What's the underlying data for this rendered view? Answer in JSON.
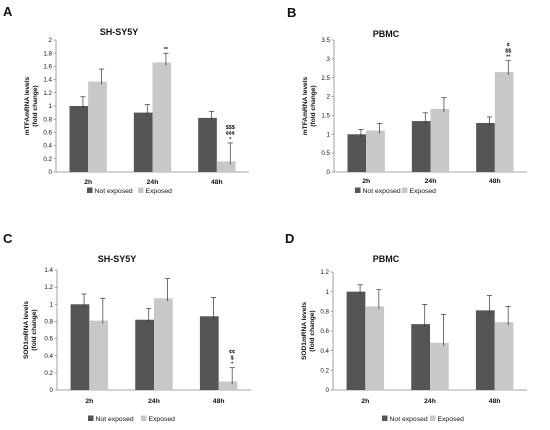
{
  "colors": {
    "not_exposed": "#555555",
    "exposed": "#c8c8c8",
    "axis": "#8a8a8a",
    "error_bar": "#333333"
  },
  "chart_data": [
    {
      "panel": "A",
      "type": "bar",
      "title": "SH-SY5Y",
      "ylabel": "mTFAmRNA levels (fold change)",
      "ylabel_lines": [
        "mTFAmRNA levels",
        "(fold change)"
      ],
      "ylim": [
        0,
        2
      ],
      "yticks": [
        "0",
        "0.2",
        "0.4",
        "0.6",
        "0.8",
        "1",
        "1.2",
        "1.4",
        "1.6",
        "1.8",
        "2"
      ],
      "categories": [
        "2h",
        "24h",
        "48h"
      ],
      "series": [
        {
          "name": "Not exposed",
          "values": [
            1.0,
            0.9,
            0.82
          ],
          "errors": [
            0.14,
            0.12,
            0.1
          ]
        },
        {
          "name": "Exposed",
          "values": [
            1.37,
            1.66,
            0.16
          ],
          "errors": [
            0.19,
            0.14,
            0.28
          ]
        }
      ],
      "annotations": [
        {
          "category": "24h",
          "series": "Exposed",
          "lines": [
            "**"
          ]
        },
        {
          "category": "48h",
          "series": "Exposed",
          "lines": [
            "$$$",
            "¢¢¢",
            "*"
          ]
        }
      ],
      "legend": "bottom"
    },
    {
      "panel": "B",
      "type": "bar",
      "title": "PBMC",
      "ylabel": "mTFAmRNA levels (fold change)",
      "ylabel_lines": [
        "mTFAmRNA levels",
        "(fold change)"
      ],
      "ylim": [
        0,
        3.5
      ],
      "yticks": [
        "0",
        "0.5",
        "1",
        "1.5",
        "2",
        "2.5",
        "3",
        "3.5"
      ],
      "categories": [
        "2h",
        "24h",
        "48h"
      ],
      "series": [
        {
          "name": "Not exposed",
          "values": [
            1.0,
            1.35,
            1.3
          ],
          "errors": [
            0.13,
            0.22,
            0.16
          ]
        },
        {
          "name": "Exposed",
          "values": [
            1.1,
            1.67,
            2.65
          ],
          "errors": [
            0.19,
            0.3,
            0.3
          ]
        }
      ],
      "annotations": [
        {
          "category": "48h",
          "series": "Exposed",
          "lines": [
            "¢",
            "$$",
            "**"
          ]
        }
      ],
      "legend": "bottom"
    },
    {
      "panel": "C",
      "type": "bar",
      "title": "SH-SY5Y",
      "ylabel": "SOD1mRNA levels (fold change)",
      "ylabel_lines": [
        "SOD1mRNA levels",
        "(fold change)"
      ],
      "ylim": [
        0,
        1.4
      ],
      "yticks": [
        "0",
        "0.2",
        "0.4",
        "0.6",
        "0.8",
        "1",
        "1.2",
        "1.4"
      ],
      "categories": [
        "2h",
        "24h",
        "48h"
      ],
      "series": [
        {
          "name": "Not exposed",
          "values": [
            1.0,
            0.82,
            0.86
          ],
          "errors": [
            0.12,
            0.13,
            0.22
          ]
        },
        {
          "name": "Exposed",
          "values": [
            0.81,
            1.07,
            0.1
          ],
          "errors": [
            0.26,
            0.23,
            0.16
          ]
        }
      ],
      "annotations": [
        {
          "category": "48h",
          "series": "Exposed",
          "lines": [
            "¢¢",
            "$",
            "*"
          ]
        }
      ],
      "legend": "bottom"
    },
    {
      "panel": "D",
      "type": "bar",
      "title": "PBMC",
      "ylabel": "SOD1mRNA levels (fold change)",
      "ylabel_lines": [
        "SOD1mRNA levels",
        "(fold change)"
      ],
      "ylim": [
        0,
        1.2
      ],
      "yticks": [
        "0",
        "0.2",
        "0.4",
        "0.6",
        "0.8",
        "1",
        "1.2"
      ],
      "categories": [
        "2h",
        "24h",
        "48h"
      ],
      "series": [
        {
          "name": "Not exposed",
          "values": [
            1.0,
            0.67,
            0.81
          ],
          "errors": [
            0.07,
            0.2,
            0.15
          ]
        },
        {
          "name": "Exposed",
          "values": [
            0.85,
            0.48,
            0.69
          ],
          "errors": [
            0.17,
            0.29,
            0.16
          ]
        }
      ],
      "annotations": [],
      "legend": "bottom"
    }
  ]
}
